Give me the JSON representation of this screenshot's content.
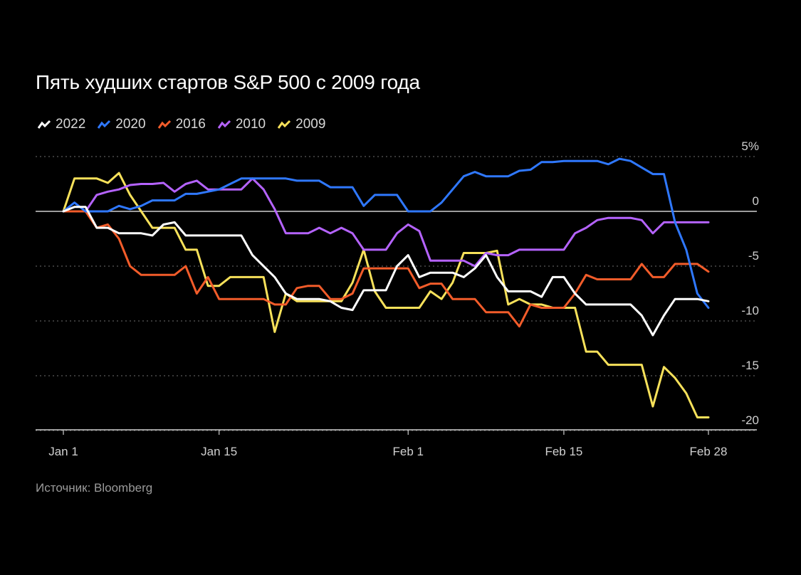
{
  "title": "Пять худших стартов S&P 500 с 2009 года",
  "source": "Источник: Bloomberg",
  "chart_data": {
    "type": "line",
    "title": "Пять худших стартов S&P 500 с 2009 года",
    "xlabel": "",
    "ylabel": "",
    "x_ticks": [
      {
        "label": "Jan 1",
        "day": 1
      },
      {
        "label": "Jan 15",
        "day": 15
      },
      {
        "label": "Feb 1",
        "day": 32
      },
      {
        "label": "Feb 15",
        "day": 46
      },
      {
        "label": "Feb 28",
        "day": 59
      }
    ],
    "y_ticks": [
      {
        "label": "5%",
        "value": 5
      },
      {
        "label": "0",
        "value": 0
      },
      {
        "label": "-5",
        "value": -5
      },
      {
        "label": "-10",
        "value": -10
      },
      {
        "label": "-15",
        "value": -15
      },
      {
        "label": "-20",
        "value": -20
      }
    ],
    "xlim": [
      1,
      59
    ],
    "ylim": [
      -20.5,
      5
    ],
    "grid": true,
    "legend_position": "top-left",
    "series": [
      {
        "name": "2022",
        "color": "#ffffff",
        "x": [
          1,
          2,
          3,
          4,
          5,
          6,
          7,
          8,
          9,
          10,
          11,
          12,
          13,
          14,
          15,
          16,
          17,
          18,
          19,
          20,
          21,
          22,
          23,
          24,
          25,
          26,
          27,
          28,
          29,
          30,
          31,
          32,
          33,
          34,
          35,
          36,
          37,
          38,
          39,
          40,
          41,
          42,
          43,
          44,
          45,
          46,
          47,
          48,
          49,
          50,
          51,
          52,
          53,
          54,
          55,
          56,
          57,
          58,
          59
        ],
        "y": [
          0,
          0.4,
          0.4,
          -1.5,
          -1.5,
          -2,
          -2,
          -2,
          -2.2,
          -1.2,
          -1,
          -2.2,
          -2.2,
          -2.2,
          -2.2,
          -2.2,
          -2.2,
          -4,
          -5,
          -6,
          -7.5,
          -8,
          -8,
          -8,
          -8.2,
          -8.8,
          -9,
          -7.2,
          -7.2,
          -7.2,
          -5,
          -4,
          -6,
          -5.6,
          -5.6,
          -5.6,
          -6,
          -5.2,
          -4,
          -6,
          -7.3,
          -7.3,
          -7.3,
          -7.8,
          -6,
          -6,
          -7.5,
          -8.5,
          -8.5,
          -8.5,
          -8.5,
          -8.5,
          -9.5,
          -11.3,
          -9.5,
          -8,
          -8,
          -8,
          -8.2
        ]
      },
      {
        "name": "2020",
        "color": "#2f78ff",
        "x": [
          1,
          2,
          3,
          4,
          5,
          6,
          7,
          8,
          9,
          10,
          11,
          12,
          13,
          14,
          15,
          16,
          17,
          18,
          19,
          20,
          21,
          22,
          23,
          24,
          25,
          26,
          27,
          28,
          29,
          30,
          31,
          32,
          33,
          34,
          35,
          36,
          37,
          38,
          39,
          40,
          41,
          42,
          43,
          44,
          45,
          46,
          47,
          48,
          49,
          50,
          51,
          52,
          53,
          54,
          55,
          56,
          57,
          58,
          59
        ],
        "y": [
          0,
          0.8,
          0,
          0,
          0,
          0.5,
          0.2,
          0.5,
          1,
          1,
          1,
          1.6,
          1.6,
          1.8,
          2,
          2.5,
          3,
          3,
          3,
          3,
          3,
          2.8,
          2.8,
          2.8,
          2.2,
          2.2,
          2.2,
          0.5,
          1.5,
          1.5,
          1.5,
          0,
          0,
          0,
          0.8,
          2,
          3.2,
          3.6,
          3.2,
          3.2,
          3.2,
          3.7,
          3.8,
          4.5,
          4.5,
          4.6,
          4.6,
          4.6,
          4.6,
          4.3,
          4.8,
          4.6,
          4,
          3.4,
          3.4,
          -1,
          -3.5,
          -7.5,
          -8.8
        ]
      },
      {
        "name": "2016",
        "color": "#f25c2a",
        "x": [
          1,
          2,
          3,
          4,
          5,
          6,
          7,
          8,
          9,
          10,
          11,
          12,
          13,
          14,
          15,
          16,
          17,
          18,
          19,
          20,
          21,
          22,
          23,
          24,
          25,
          26,
          27,
          28,
          29,
          30,
          31,
          32,
          33,
          34,
          35,
          36,
          37,
          38,
          39,
          40,
          41,
          42,
          43,
          44,
          45,
          46,
          47,
          48,
          49,
          50,
          51,
          52,
          53,
          54,
          55,
          56,
          57,
          58,
          59
        ],
        "y": [
          0,
          0,
          0,
          -1.5,
          -1.2,
          -2.5,
          -5,
          -5.8,
          -5.8,
          -5.8,
          -5.8,
          -5,
          -7.5,
          -6,
          -8,
          -8,
          -8,
          -8,
          -8,
          -8.5,
          -8.5,
          -7,
          -6.8,
          -6.8,
          -8,
          -8,
          -7.5,
          -5.2,
          -5.2,
          -5.2,
          -5.2,
          -5.2,
          -7,
          -6.6,
          -6.6,
          -8,
          -8,
          -8,
          -9.2,
          -9.2,
          -9.2,
          -10.5,
          -8.5,
          -8.8,
          -8.8,
          -8.8,
          -7.5,
          -5.8,
          -6.2,
          -6.2,
          -6.2,
          -6.2,
          -4.8,
          -6,
          -6,
          -4.8,
          -4.8,
          -4.8,
          -5.5
        ]
      },
      {
        "name": "2010",
        "color": "#b563ff",
        "x": [
          1,
          2,
          3,
          4,
          5,
          6,
          7,
          8,
          9,
          10,
          11,
          12,
          13,
          14,
          15,
          16,
          17,
          18,
          19,
          20,
          21,
          22,
          23,
          24,
          25,
          26,
          27,
          28,
          29,
          30,
          31,
          32,
          33,
          34,
          35,
          36,
          37,
          38,
          39,
          40,
          41,
          42,
          43,
          44,
          45,
          46,
          47,
          48,
          49,
          50,
          51,
          52,
          53,
          54,
          55,
          56,
          57,
          58,
          59
        ],
        "y": [
          0,
          0,
          0,
          1.5,
          1.8,
          2,
          2.4,
          2.5,
          2.5,
          2.6,
          1.8,
          2.5,
          2.8,
          2,
          2,
          2,
          2,
          3,
          2,
          0.2,
          -2,
          -2,
          -2,
          -1.5,
          -2,
          -1.5,
          -2,
          -3.5,
          -3.5,
          -3.5,
          -2,
          -1.2,
          -1.8,
          -4.5,
          -4.5,
          -4.5,
          -4.5,
          -5,
          -3.8,
          -4,
          -4,
          -3.5,
          -3.5,
          -3.5,
          -3.5,
          -3.5,
          -2,
          -1.5,
          -0.8,
          -0.6,
          -0.6,
          -0.6,
          -0.8,
          -2,
          -1,
          -1,
          -1,
          -1,
          -1
        ]
      },
      {
        "name": "2009",
        "color": "#f7e15a",
        "x": [
          1,
          2,
          3,
          4,
          5,
          6,
          7,
          8,
          9,
          10,
          11,
          12,
          13,
          14,
          15,
          16,
          17,
          18,
          19,
          20,
          21,
          22,
          23,
          24,
          25,
          26,
          27,
          28,
          29,
          30,
          31,
          32,
          33,
          34,
          35,
          36,
          37,
          38,
          39,
          40,
          41,
          42,
          43,
          44,
          45,
          46,
          47,
          48,
          49,
          50,
          51,
          52,
          53,
          54,
          55,
          56,
          57,
          58,
          59
        ],
        "y": [
          0,
          3,
          3,
          3,
          2.6,
          3.5,
          1.5,
          0,
          -1.5,
          -1.5,
          -1.5,
          -3.5,
          -3.5,
          -6.8,
          -6.8,
          -6,
          -6,
          -6,
          -6,
          -11,
          -7.5,
          -8.2,
          -8.2,
          -8.2,
          -8.2,
          -8.2,
          -6.5,
          -3.5,
          -7.3,
          -8.8,
          -8.8,
          -8.8,
          -8.8,
          -7.3,
          -8,
          -6.5,
          -3.8,
          -3.8,
          -3.8,
          -3.6,
          -8.5,
          -8,
          -8.5,
          -8.5,
          -8.8,
          -8.8,
          -8.8,
          -12.8,
          -12.8,
          -14,
          -14,
          -14,
          -14,
          -17.8,
          -14.2,
          -15.2,
          -16.6,
          -18.8,
          -18.8
        ]
      }
    ]
  }
}
